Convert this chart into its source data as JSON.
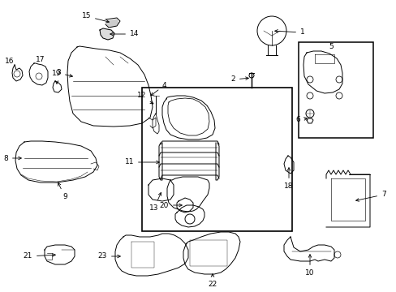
{
  "background_color": "#ffffff",
  "line_color": "#000000",
  "fig_w": 4.89,
  "fig_h": 3.6,
  "dpi": 100
}
